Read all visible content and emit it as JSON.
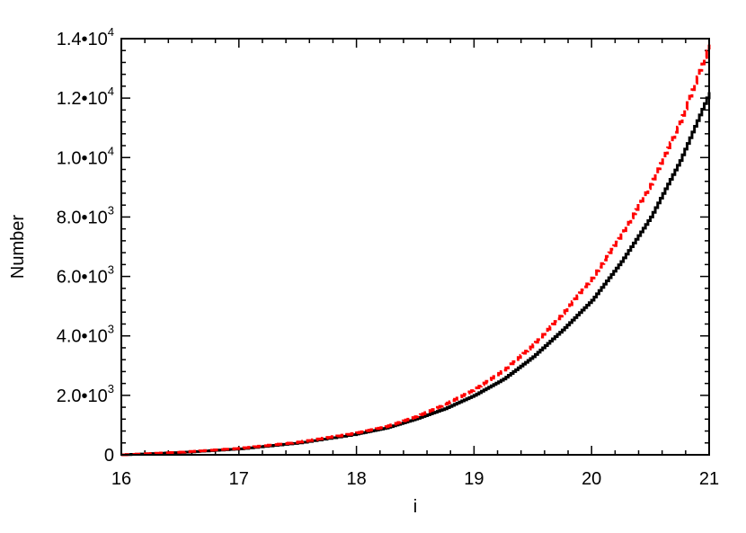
{
  "chart_data": {
    "type": "line",
    "title": "",
    "xlabel": "i",
    "ylabel": "Number",
    "xlim": [
      16,
      21
    ],
    "ylim": [
      0,
      14000
    ],
    "grid": false,
    "x_ticks": [
      {
        "value": 16,
        "label": "16"
      },
      {
        "value": 17,
        "label": "17"
      },
      {
        "value": 18,
        "label": "18"
      },
      {
        "value": 19,
        "label": "19"
      },
      {
        "value": 20,
        "label": "20"
      },
      {
        "value": 21,
        "label": "21"
      }
    ],
    "y_ticks": [
      {
        "value": 0,
        "mantissa": "0",
        "exponent": ""
      },
      {
        "value": 2000,
        "mantissa": "2.0•10",
        "exponent": "3"
      },
      {
        "value": 4000,
        "mantissa": "4.0•10",
        "exponent": "3"
      },
      {
        "value": 6000,
        "mantissa": "6.0•10",
        "exponent": "3"
      },
      {
        "value": 8000,
        "mantissa": "8.0•10",
        "exponent": "3"
      },
      {
        "value": 10000,
        "mantissa": "1.0•10",
        "exponent": "4"
      },
      {
        "value": 12000,
        "mantissa": "1.2•10",
        "exponent": "4"
      },
      {
        "value": 14000,
        "mantissa": "1.4•10",
        "exponent": "4"
      }
    ],
    "series": [
      {
        "color": "#000000",
        "style": "solid",
        "x": [
          16.0,
          16.5,
          17.0,
          17.5,
          18.0,
          18.25,
          18.5,
          18.75,
          19.0,
          19.25,
          19.5,
          19.75,
          20.0,
          20.25,
          20.5,
          20.75,
          21.0
        ],
        "y": [
          0,
          80,
          200,
          400,
          700,
          900,
          1200,
          1550,
          2000,
          2550,
          3300,
          4200,
          5200,
          6500,
          8000,
          9900,
          12200
        ]
      },
      {
        "color": "#ff0000",
        "style": "dashed",
        "x": [
          16.0,
          16.5,
          17.0,
          17.5,
          18.0,
          18.25,
          18.5,
          18.75,
          19.0,
          19.25,
          19.5,
          19.75,
          20.0,
          20.25,
          20.5,
          20.75,
          21.0
        ],
        "y": [
          0,
          90,
          220,
          430,
          740,
          950,
          1280,
          1700,
          2200,
          2850,
          3700,
          4750,
          5950,
          7400,
          9100,
          11200,
          13800
        ]
      }
    ]
  }
}
